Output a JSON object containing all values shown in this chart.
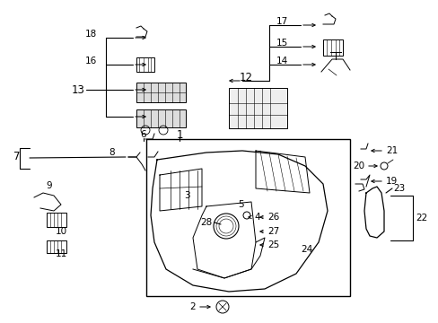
{
  "bg_color": "#ffffff",
  "fig_width": 4.89,
  "fig_height": 3.6,
  "dpi": 100,
  "text_color": "#000000",
  "line_color": "#000000",
  "fontsize": 7.5
}
